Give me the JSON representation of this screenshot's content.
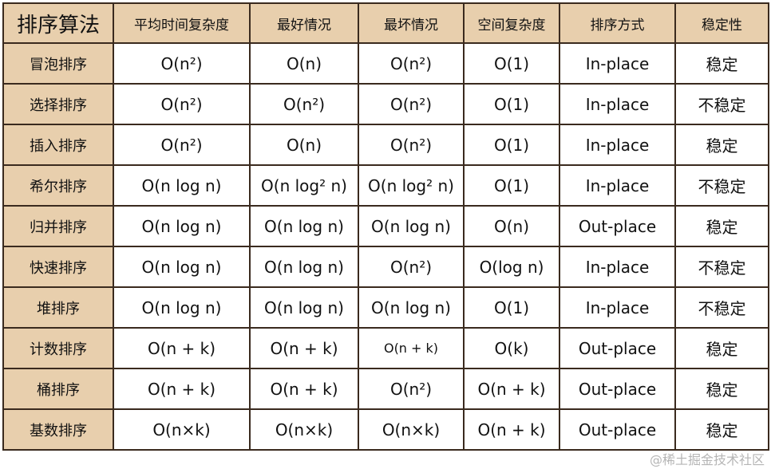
{
  "headers": [
    "排序算法",
    "平均时间复杂度",
    "最好情况",
    "最坏情况",
    "空间复杂度",
    "排序方式",
    "稳定性"
  ],
  "rows": [
    [
      "冒泡排序",
      "O(n²)",
      "O(n)",
      "O(n²)",
      "O(1)",
      "In-place",
      "稳定"
    ],
    [
      "选择排序",
      "O(n²)",
      "O(n²)",
      "O(n²)",
      "O(1)",
      "In-place",
      "不稳定"
    ],
    [
      "插入排序",
      "O(n²)",
      "O(n)",
      "O(n²)",
      "O(1)",
      "In-place",
      "稳定"
    ],
    [
      "希尔排序",
      "O(n log n)",
      "O(n log² n)",
      "O(n log² n)",
      "O(1)",
      "In-place",
      "不稳定"
    ],
    [
      "归并排序",
      "O(n log n)",
      "O(n log n)",
      "O(n log n)",
      "O(n)",
      "Out-place",
      "稳定"
    ],
    [
      "快速排序",
      "O(n log n)",
      "O(n log n)",
      "O(n²)",
      "O(log n)",
      "In-place",
      "不稳定"
    ],
    [
      "堆排序",
      "O(n log n)",
      "O(n log n)",
      "O(n log n)",
      "O(1)",
      "In-place",
      "不稳定"
    ],
    [
      "计数排序",
      "O(n + k)",
      "O(n + k)",
      "O(n + k)",
      "O(k)",
      "Out-place",
      "稳定"
    ],
    [
      "桶排序",
      "O(n + k)",
      "O(n + k)",
      "O(n²)",
      "O(n + k)",
      "Out-place",
      "稳定"
    ],
    [
      "基数排序",
      "O(n×k)",
      "O(n×k)",
      "O(n×k)",
      "O(n + k)",
      "Out-place",
      "稳定"
    ]
  ],
  "watermark": "@稀土掘金技术社区",
  "colors": {
    "header_bg": "#e8cfad",
    "border": "#3a2a1e"
  }
}
